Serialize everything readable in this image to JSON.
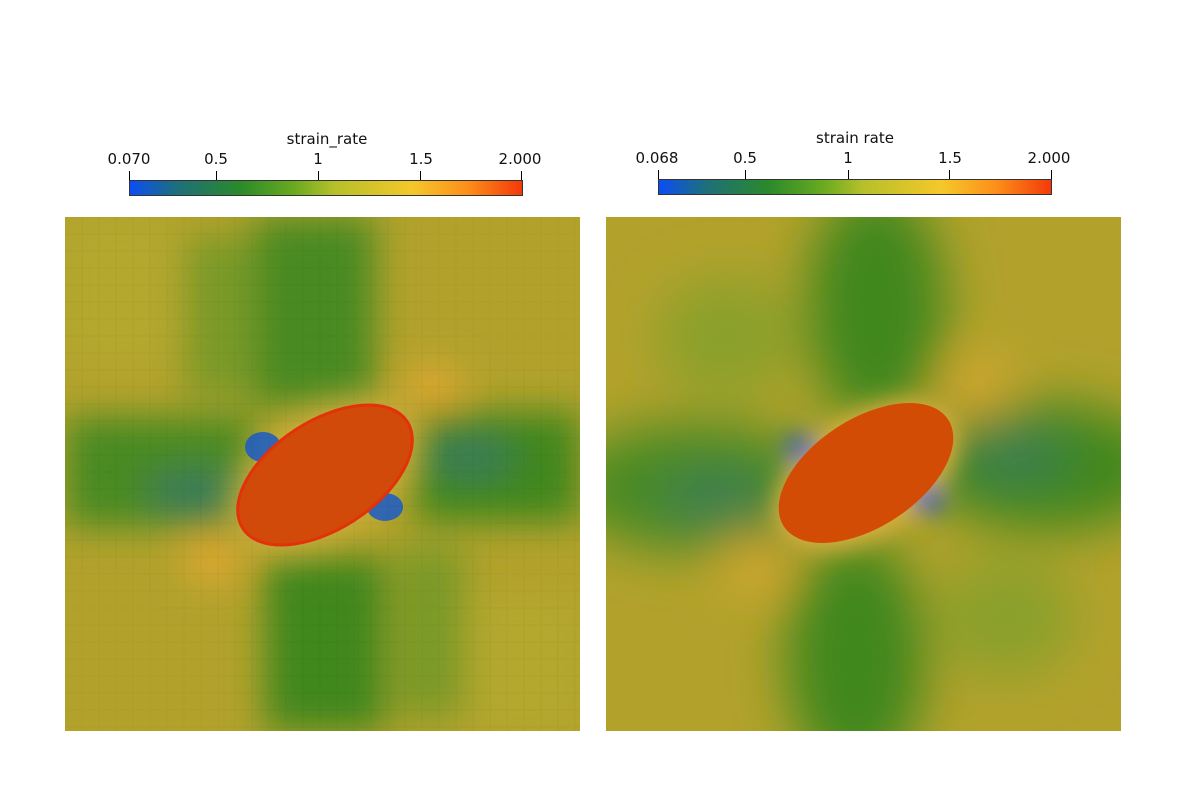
{
  "panels": [
    {
      "colorbar": {
        "title": "strain_rate",
        "ticks": [
          "0.070",
          "0.5",
          "1",
          "1.5",
          "2.000"
        ],
        "tick_values": [
          0.07,
          0.5,
          1.0,
          1.5,
          2.0
        ],
        "range": [
          0.07,
          2.0
        ]
      },
      "field": "strain_rate",
      "style": "pixelated"
    },
    {
      "colorbar": {
        "title": "strain rate",
        "ticks": [
          "0.068",
          "0.5",
          "1",
          "1.5",
          "2.000"
        ],
        "tick_values": [
          0.068,
          0.5,
          1.0,
          1.5,
          2.0
        ],
        "range": [
          0.068,
          2.0
        ]
      },
      "field": "strain rate",
      "style": "smooth"
    }
  ],
  "colormap": {
    "stops": [
      "#0a4ef5",
      "#2a8a2a",
      "#5aa51c",
      "#b5c02a",
      "#f5c82a",
      "#fd8f1a",
      "#f33a0a"
    ]
  }
}
